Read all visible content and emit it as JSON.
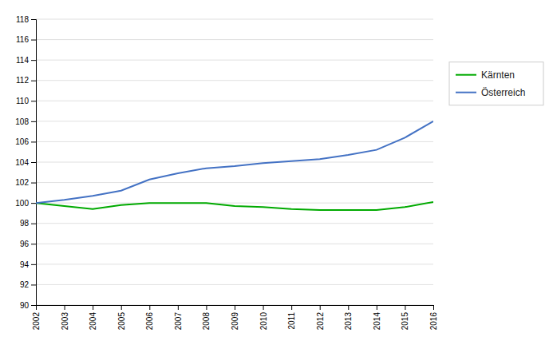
{
  "chart_data": {
    "type": "line",
    "x": [
      2002,
      2003,
      2004,
      2005,
      2006,
      2007,
      2008,
      2009,
      2010,
      2011,
      2012,
      2013,
      2014,
      2015,
      2016
    ],
    "series": [
      {
        "name": "Kärnten",
        "color": "#00aa00",
        "values": [
          100.0,
          99.7,
          99.4,
          99.8,
          100.0,
          100.0,
          100.0,
          99.7,
          99.6,
          99.4,
          99.3,
          99.3,
          99.3,
          99.6,
          100.1
        ]
      },
      {
        "name": "Österreich",
        "color": "#4472c4",
        "values": [
          100.0,
          100.3,
          100.7,
          101.2,
          102.3,
          102.9,
          103.4,
          103.6,
          103.9,
          104.1,
          104.3,
          104.7,
          105.2,
          106.4,
          108.0
        ]
      }
    ],
    "xlim": [
      2002,
      2016
    ],
    "xticks": [
      2002,
      2003,
      2004,
      2005,
      2006,
      2007,
      2008,
      2009,
      2010,
      2011,
      2012,
      2013,
      2014,
      2015,
      2016
    ],
    "ylim": [
      90,
      118
    ],
    "yticks": [
      90,
      92,
      94,
      96,
      98,
      100,
      102,
      104,
      106,
      108,
      110,
      112,
      114,
      116,
      118
    ],
    "grid": "y",
    "legend": "right"
  }
}
